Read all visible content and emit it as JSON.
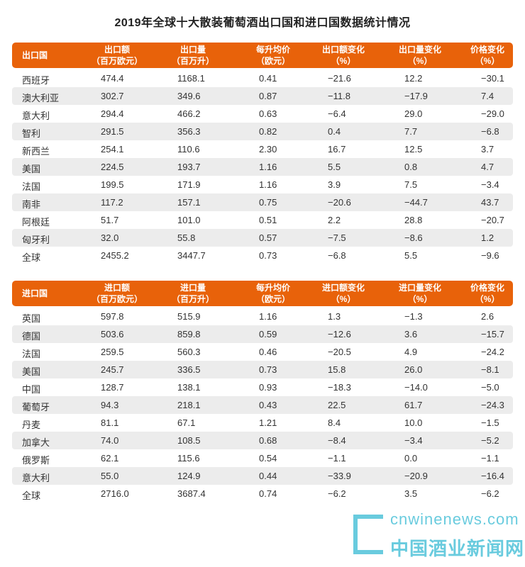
{
  "title": "2019年全球十大散装葡萄酒出口国和进口国数据统计情况",
  "export": {
    "headers": [
      "出口国",
      "出口额\n（百万欧元）",
      "出口量\n（百万升）",
      "每升均价\n（欧元）",
      "出口额变化\n（%）",
      "出口量变化\n（%）",
      "价格变化\n（%）"
    ],
    "rows": [
      [
        "西班牙",
        "474.4",
        "1168.1",
        "0.41",
        "−21.6",
        "12.2",
        "−30.1"
      ],
      [
        "澳大利亚",
        "302.7",
        "349.6",
        "0.87",
        "−11.8",
        "−17.9",
        "7.4"
      ],
      [
        "意大利",
        "294.4",
        "466.2",
        "0.63",
        "−6.4",
        "29.0",
        "−29.0"
      ],
      [
        "智利",
        "291.5",
        "356.3",
        "0.82",
        "0.4",
        "7.7",
        "−6.8"
      ],
      [
        "新西兰",
        "254.1",
        "110.6",
        "2.30",
        "16.7",
        "12.5",
        "3.7"
      ],
      [
        "美国",
        "224.5",
        "193.7",
        "1.16",
        "5.5",
        "0.8",
        "4.7"
      ],
      [
        "法国",
        "199.5",
        "171.9",
        "1.16",
        "3.9",
        "7.5",
        "−3.4"
      ],
      [
        "南非",
        "117.2",
        "157.1",
        "0.75",
        "−20.6",
        "−44.7",
        "43.7"
      ],
      [
        "阿根廷",
        "51.7",
        "101.0",
        "0.51",
        "2.2",
        "28.8",
        "−20.7"
      ],
      [
        "匈牙利",
        "32.0",
        "55.8",
        "0.57",
        "−7.5",
        "−8.6",
        "1.2"
      ],
      [
        "全球",
        "2455.2",
        "3447.7",
        "0.73",
        "−6.8",
        "5.5",
        "−9.6"
      ]
    ]
  },
  "import": {
    "headers": [
      "进口国",
      "进口额\n（百万欧元）",
      "进口量\n（百万升）",
      "每升均价\n（欧元）",
      "进口额变化\n（%）",
      "进口量变化\n（%）",
      "价格变化\n（%）"
    ],
    "rows": [
      [
        "英国",
        "597.8",
        "515.9",
        "1.16",
        "1.3",
        "−1.3",
        "2.6"
      ],
      [
        "德国",
        "503.6",
        "859.8",
        "0.59",
        "−12.6",
        "3.6",
        "−15.7"
      ],
      [
        "法国",
        "259.5",
        "560.3",
        "0.46",
        "−20.5",
        "4.9",
        "−24.2"
      ],
      [
        "美国",
        "245.7",
        "336.5",
        "0.73",
        "15.8",
        "26.0",
        "−8.1"
      ],
      [
        "中国",
        "128.7",
        "138.1",
        "0.93",
        "−18.3",
        "−14.0",
        "−5.0"
      ],
      [
        "葡萄牙",
        "94.3",
        "218.1",
        "0.43",
        "22.5",
        "61.7",
        "−24.3"
      ],
      [
        "丹麦",
        "81.1",
        "67.1",
        "1.21",
        "8.4",
        "10.0",
        "−1.5"
      ],
      [
        "加拿大",
        "74.0",
        "108.5",
        "0.68",
        "−8.4",
        "−3.4",
        "−5.2"
      ],
      [
        "俄罗斯",
        "62.1",
        "115.6",
        "0.54",
        "−1.1",
        "0.0",
        "−1.1"
      ],
      [
        "意大利",
        "55.0",
        "124.9",
        "0.44",
        "−33.9",
        "−20.9",
        "−16.4"
      ],
      [
        "全球",
        "2716.0",
        "3687.4",
        "0.74",
        "−6.2",
        "3.5",
        "−6.2"
      ]
    ]
  },
  "watermark": {
    "en": "cnwinenews.com",
    "cn": "中国酒业新闻网"
  }
}
